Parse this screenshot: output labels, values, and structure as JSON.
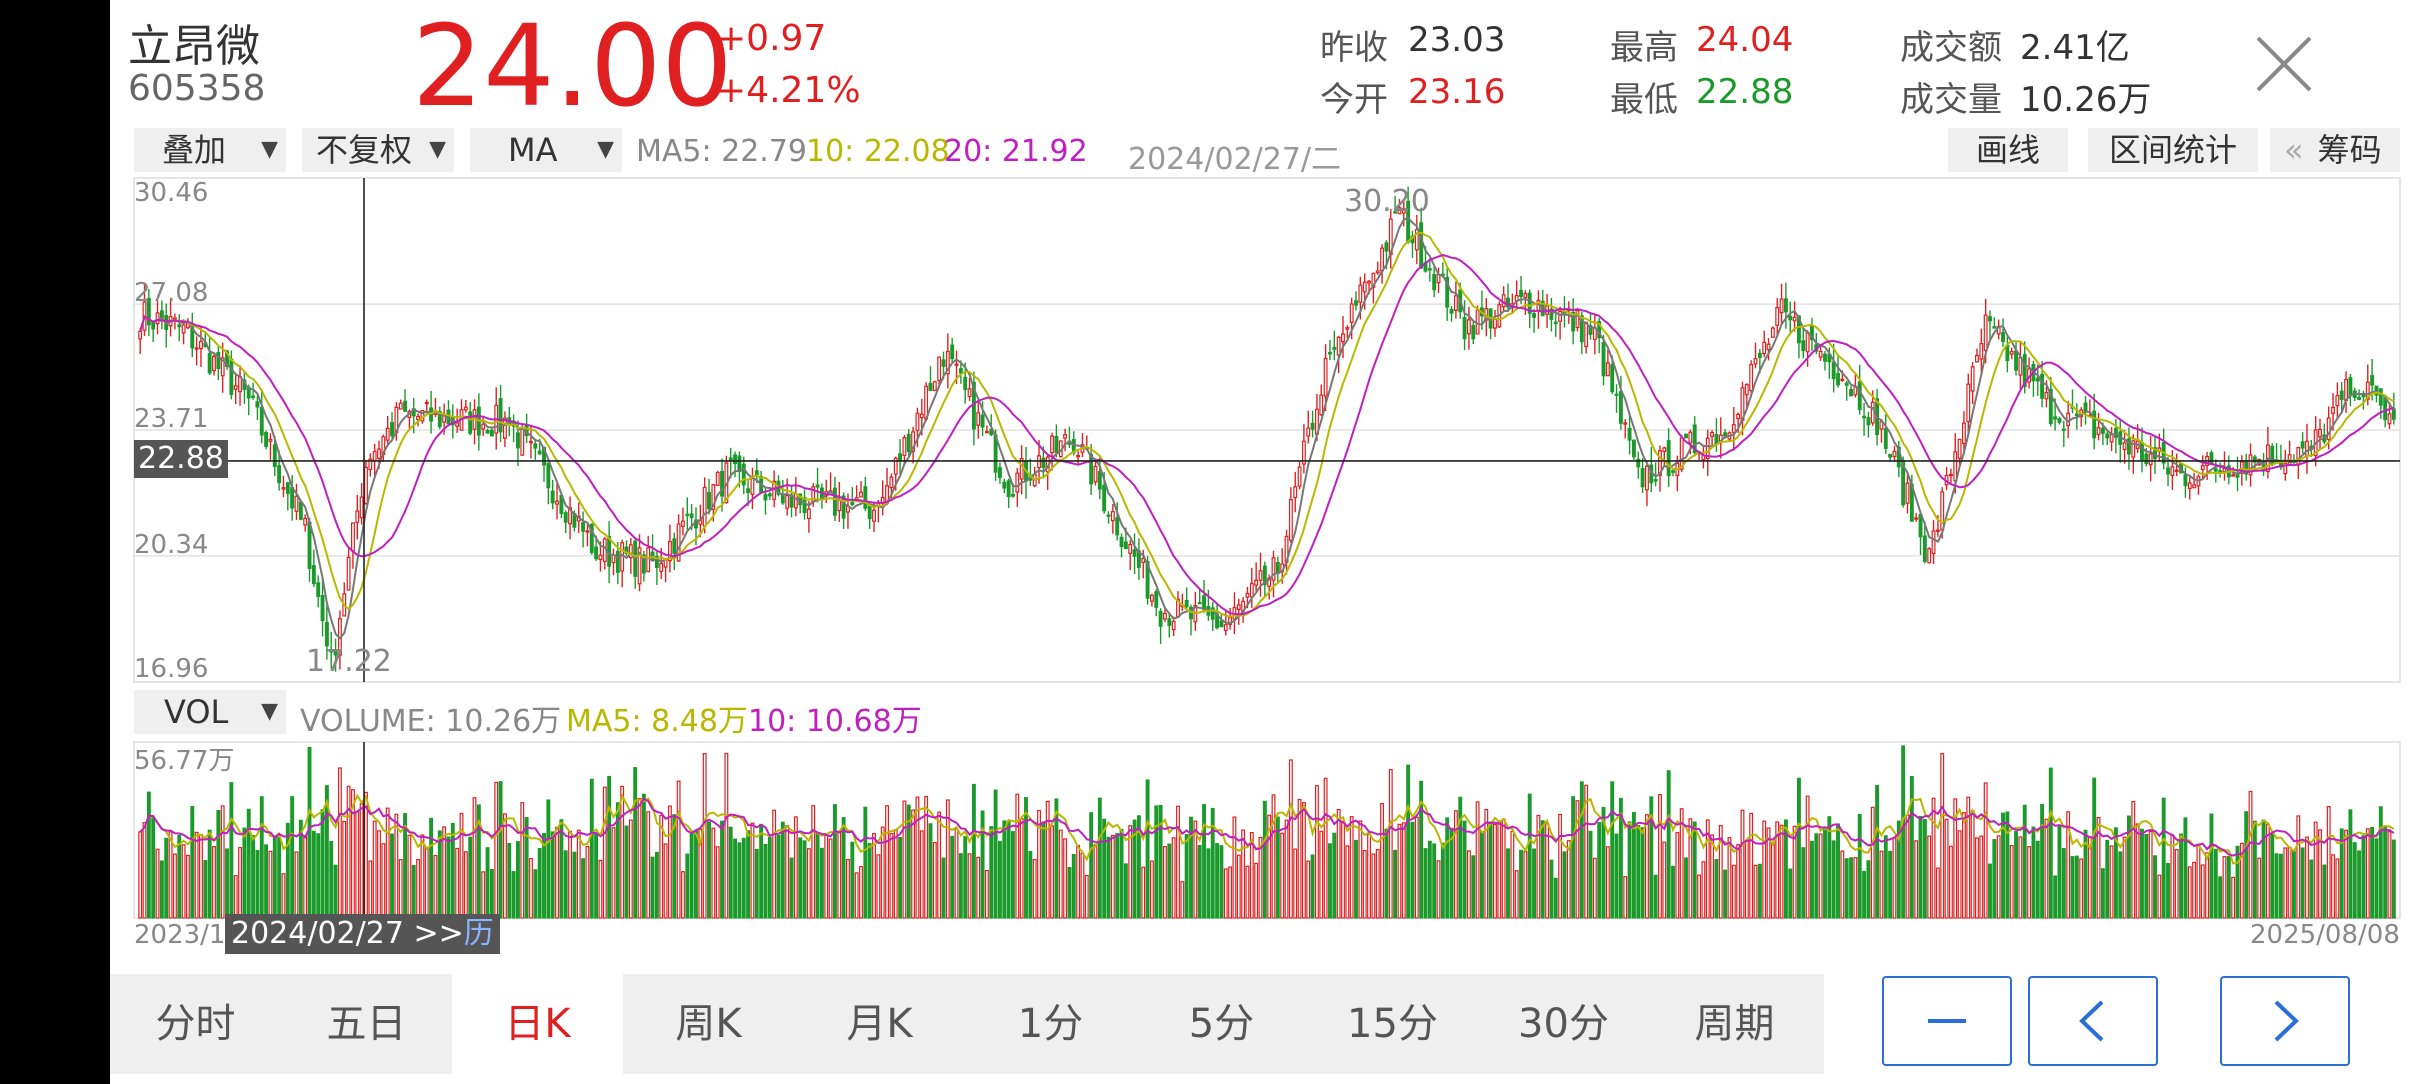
{
  "header": {
    "stock_name": "立昂微",
    "stock_code": "605358",
    "price": "24.00",
    "change": "+0.97",
    "change_pct": "+4.21%",
    "prev_close_label": "昨收",
    "prev_close": "23.03",
    "open_label": "今开",
    "open": "23.16",
    "high_label": "最高",
    "high": "24.04",
    "low_label": "最低",
    "low": "22.88",
    "turnover_label": "成交额",
    "turnover": "2.41亿",
    "volume_label": "成交量",
    "volume": "10.26万"
  },
  "toolbar": {
    "overlay_label": "叠加",
    "adjust_label": "不复权",
    "indicator_label": "MA",
    "ma5_text": "MA5: 22.79",
    "ma10_text": "10: 22.08",
    "ma20_text": "20: 21.92",
    "cursor_date": "2024/02/27/二",
    "draw_label": "画线",
    "range_stats_label": "区间统计",
    "chips_label": "筹码",
    "chips_arrow": "«"
  },
  "volume_bar": {
    "indicator_label": "VOL",
    "volume_text": "VOLUME: 10.26万",
    "ma5_text": "MA5: 8.48万",
    "ma10_text": "10: 10.68万"
  },
  "colors": {
    "up": "#e02020",
    "down": "#1a9a2a",
    "ma5": "#777777",
    "ma10": "#b8b800",
    "ma20": "#c020c0",
    "accent_blue": "#2a6fd6"
  },
  "chart_data": {
    "type": "candlestick",
    "y_ticks": [
      "30.46",
      "27.08",
      "23.71",
      "20.34",
      "16.96"
    ],
    "ylim": [
      16.96,
      30.46
    ],
    "crosshair_price": "22.88",
    "high_marker": "30.20",
    "low_marker": "17.22",
    "x_start_label": "2023/12",
    "x_end_label": "2025/08/08",
    "cursor_label": "2024/02/27 >>",
    "cursor_suffix": "历",
    "volume_max_label": "56.77万",
    "closing_anchors": [
      {
        "i": 0,
        "close": 26.8
      },
      {
        "i": 10,
        "close": 26.4
      },
      {
        "i": 25,
        "close": 24.5
      },
      {
        "i": 38,
        "close": 21.0
      },
      {
        "i": 44,
        "close": 17.4
      },
      {
        "i": 52,
        "close": 22.9
      },
      {
        "i": 60,
        "close": 24.1
      },
      {
        "i": 85,
        "close": 23.9
      },
      {
        "i": 105,
        "close": 20.5
      },
      {
        "i": 118,
        "close": 20.1
      },
      {
        "i": 135,
        "close": 22.5
      },
      {
        "i": 150,
        "close": 21.8
      },
      {
        "i": 170,
        "close": 21.6
      },
      {
        "i": 185,
        "close": 25.8
      },
      {
        "i": 200,
        "close": 22.3
      },
      {
        "i": 215,
        "close": 23.5
      },
      {
        "i": 235,
        "close": 18.9
      },
      {
        "i": 250,
        "close": 18.5
      },
      {
        "i": 262,
        "close": 20.0
      },
      {
        "i": 272,
        "close": 25.0
      },
      {
        "i": 282,
        "close": 27.5
      },
      {
        "i": 290,
        "close": 29.5
      },
      {
        "i": 305,
        "close": 26.5
      },
      {
        "i": 320,
        "close": 27.2
      },
      {
        "i": 335,
        "close": 26.3
      },
      {
        "i": 345,
        "close": 22.4
      },
      {
        "i": 365,
        "close": 23.8
      },
      {
        "i": 378,
        "close": 26.8
      },
      {
        "i": 392,
        "close": 25.2
      },
      {
        "i": 400,
        "close": 24.0
      },
      {
        "i": 412,
        "close": 20.3
      },
      {
        "i": 425,
        "close": 26.5
      },
      {
        "i": 440,
        "close": 24.3
      },
      {
        "i": 455,
        "close": 23.5
      },
      {
        "i": 470,
        "close": 22.5
      },
      {
        "i": 485,
        "close": 22.9
      },
      {
        "i": 500,
        "close": 23.2
      },
      {
        "i": 510,
        "close": 25.0
      },
      {
        "i": 519,
        "close": 24.0
      }
    ]
  },
  "tabs": [
    "分时",
    "五日",
    "日K",
    "周K",
    "月K",
    "1分",
    "5分",
    "15分",
    "30分",
    "周期"
  ],
  "active_tab": "日K",
  "nav": {
    "minus_icon": "minus-icon",
    "left_icon": "chevron-left-icon",
    "right_icon": "chevron-right-icon",
    "close_icon": "close-icon"
  }
}
